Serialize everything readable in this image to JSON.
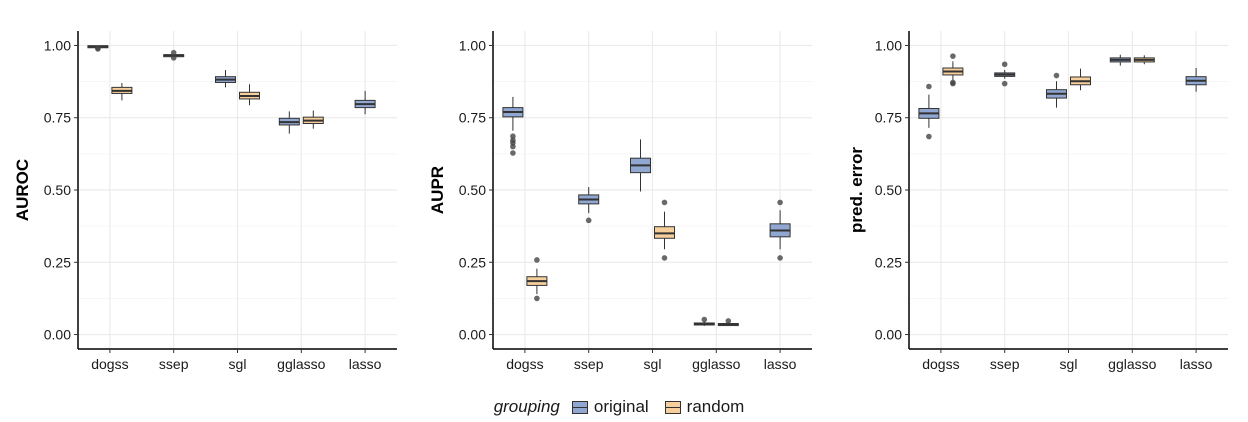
{
  "chart_data": [
    {
      "type": "box",
      "ylabel": "AUROC",
      "ylim": [
        -0.05,
        1.05
      ],
      "yticks": [
        "0.00",
        "0.25",
        "0.50",
        "0.75",
        "1.00"
      ],
      "categories": [
        "dogss",
        "ssep",
        "sgl",
        "gglasso",
        "lasso"
      ],
      "series": [
        {
          "name": "original",
          "boxes": [
            {
              "category": "dogss",
              "min": 0.99,
              "q1": 0.995,
              "median": 0.997,
              "q3": 0.999,
              "max": 1.0,
              "outliers": [
                0.988,
                0.991
              ]
            },
            {
              "category": "ssep",
              "min": 0.962,
              "q1": 0.964,
              "median": 0.966,
              "q3": 0.968,
              "max": 0.97,
              "outliers": [
                0.957,
                0.975
              ]
            },
            {
              "category": "sgl",
              "min": 0.855,
              "q1": 0.872,
              "median": 0.882,
              "q3": 0.892,
              "max": 0.915,
              "outliers": []
            },
            {
              "category": "gglasso",
              "min": 0.695,
              "q1": 0.725,
              "median": 0.735,
              "q3": 0.748,
              "max": 0.772,
              "outliers": []
            },
            {
              "category": "lasso",
              "min": 0.762,
              "q1": 0.785,
              "median": 0.797,
              "q3": 0.81,
              "max": 0.843,
              "outliers": []
            }
          ]
        },
        {
          "name": "random",
          "boxes": [
            {
              "category": "dogss",
              "min": 0.81,
              "q1": 0.834,
              "median": 0.843,
              "q3": 0.855,
              "max": 0.87,
              "outliers": []
            },
            {
              "category": "sgl",
              "min": 0.793,
              "q1": 0.815,
              "median": 0.825,
              "q3": 0.838,
              "max": 0.866,
              "outliers": []
            },
            {
              "category": "gglasso",
              "min": 0.712,
              "q1": 0.73,
              "median": 0.74,
              "q3": 0.752,
              "max": 0.775,
              "outliers": []
            }
          ]
        }
      ]
    },
    {
      "type": "box",
      "ylabel": "AUPR",
      "ylim": [
        -0.05,
        1.05
      ],
      "yticks": [
        "0.00",
        "0.25",
        "0.50",
        "0.75",
        "1.00"
      ],
      "categories": [
        "dogss",
        "ssep",
        "sgl",
        "gglasso",
        "lasso"
      ],
      "series": [
        {
          "name": "original",
          "boxes": [
            {
              "category": "dogss",
              "min": 0.705,
              "q1": 0.753,
              "median": 0.77,
              "q3": 0.785,
              "max": 0.822,
              "outliers": [
                0.686,
                0.672,
                0.663,
                0.65,
                0.628
              ]
            },
            {
              "category": "ssep",
              "min": 0.42,
              "q1": 0.452,
              "median": 0.467,
              "q3": 0.483,
              "max": 0.51,
              "outliers": [
                0.395
              ]
            },
            {
              "category": "sgl",
              "min": 0.495,
              "q1": 0.56,
              "median": 0.585,
              "q3": 0.61,
              "max": 0.675,
              "outliers": []
            },
            {
              "category": "gglasso",
              "min": 0.03,
              "q1": 0.034,
              "median": 0.037,
              "q3": 0.04,
              "max": 0.045,
              "outliers": [
                0.052
              ]
            },
            {
              "category": "lasso",
              "min": 0.295,
              "q1": 0.338,
              "median": 0.36,
              "q3": 0.383,
              "max": 0.43,
              "outliers": [
                0.457,
                0.265
              ]
            }
          ]
        },
        {
          "name": "random",
          "boxes": [
            {
              "category": "dogss",
              "min": 0.14,
              "q1": 0.17,
              "median": 0.185,
              "q3": 0.2,
              "max": 0.228,
              "outliers": [
                0.258,
                0.125
              ]
            },
            {
              "category": "sgl",
              "min": 0.295,
              "q1": 0.333,
              "median": 0.35,
              "q3": 0.373,
              "max": 0.425,
              "outliers": [
                0.457,
                0.265
              ]
            },
            {
              "category": "gglasso",
              "min": 0.031,
              "q1": 0.034,
              "median": 0.036,
              "q3": 0.038,
              "max": 0.042,
              "outliers": [
                0.047
              ]
            }
          ]
        }
      ]
    },
    {
      "type": "box",
      "ylabel": "pred. error",
      "ylim": [
        -0.05,
        1.05
      ],
      "yticks": [
        "0.00",
        "0.25",
        "0.50",
        "0.75",
        "1.00"
      ],
      "categories": [
        "dogss",
        "ssep",
        "sgl",
        "gglasso",
        "lasso"
      ],
      "series": [
        {
          "name": "original",
          "boxes": [
            {
              "category": "dogss",
              "min": 0.715,
              "q1": 0.748,
              "median": 0.765,
              "q3": 0.782,
              "max": 0.83,
              "outliers": [
                0.858,
                0.685
              ]
            },
            {
              "category": "ssep",
              "min": 0.885,
              "q1": 0.893,
              "median": 0.899,
              "q3": 0.905,
              "max": 0.915,
              "outliers": [
                0.935,
                0.868
              ]
            },
            {
              "category": "sgl",
              "min": 0.785,
              "q1": 0.818,
              "median": 0.833,
              "q3": 0.847,
              "max": 0.876,
              "outliers": [
                0.896
              ]
            },
            {
              "category": "gglasso",
              "min": 0.93,
              "q1": 0.943,
              "median": 0.95,
              "q3": 0.957,
              "max": 0.968,
              "outliers": []
            },
            {
              "category": "lasso",
              "min": 0.84,
              "q1": 0.864,
              "median": 0.878,
              "q3": 0.892,
              "max": 0.922,
              "outliers": []
            }
          ]
        },
        {
          "name": "random",
          "boxes": [
            {
              "category": "dogss",
              "min": 0.88,
              "q1": 0.898,
              "median": 0.91,
              "q3": 0.922,
              "max": 0.945,
              "outliers": [
                0.963,
                0.872,
                0.868
              ]
            },
            {
              "category": "sgl",
              "min": 0.845,
              "q1": 0.864,
              "median": 0.876,
              "q3": 0.891,
              "max": 0.92,
              "outliers": []
            },
            {
              "category": "gglasso",
              "min": 0.935,
              "q1": 0.943,
              "median": 0.95,
              "q3": 0.957,
              "max": 0.966,
              "outliers": []
            }
          ]
        }
      ]
    }
  ],
  "legend": {
    "title": "grouping",
    "items": [
      {
        "label": "original",
        "color": "#8fa7d1"
      },
      {
        "label": "random",
        "color": "#f6cf9c"
      }
    ],
    "placement": "bottom"
  },
  "colors": {
    "original": "#8fa7d1",
    "random": "#f6cf9c",
    "grid": "#ebebeb",
    "outline": "#333333"
  }
}
